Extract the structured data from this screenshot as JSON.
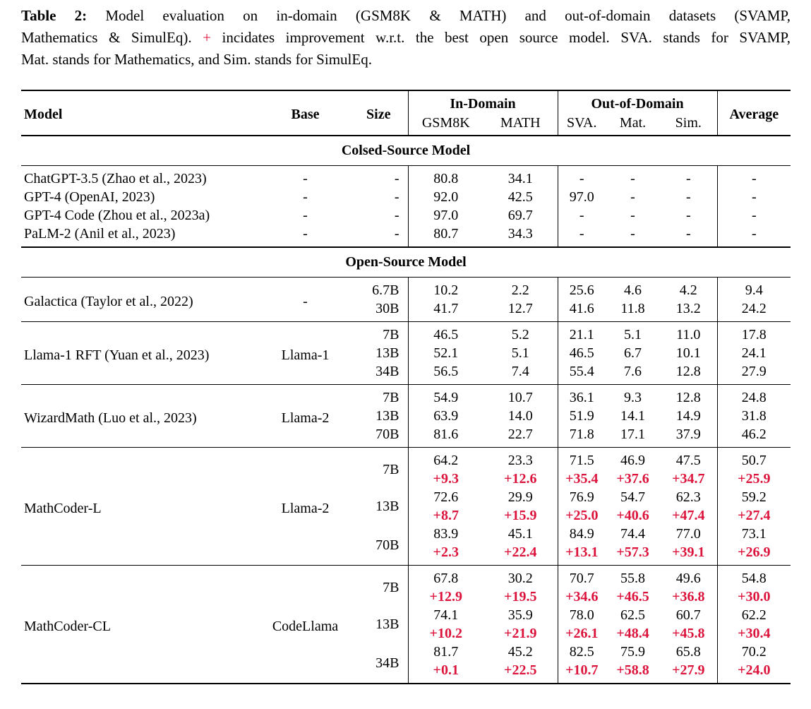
{
  "colors": {
    "accent_red": "#DC143C",
    "text": "#000000",
    "background": "#FFFFFF"
  },
  "caption": {
    "label": "Table 2:",
    "line1_rest": " Model evaluation on in-domain (GSM8K & MATH) and out-of-domain datasets (SVAMP,",
    "line2_before_plus": "Mathematics & SimulEq). ",
    "plus": "+",
    "line2_after_plus": " incidates improvement w.r.t. the best open source model. SVA. stands for SVAMP,",
    "line3": "Mat. stands for Mathematics, and Sim. stands for SimulEq."
  },
  "table": {
    "header": {
      "model": "Model",
      "base": "Base",
      "size": "Size",
      "in_domain": "In-Domain",
      "out_of_domain": "Out-of-Domain",
      "average": "Average",
      "sub_columns": [
        "GSM8K",
        "MATH",
        "SVA.",
        "Mat.",
        "Sim."
      ]
    },
    "sections": [
      {
        "title": "Colsed-Source Model",
        "blocks": [
          {
            "rows": [
              {
                "model": "ChatGPT-3.5 (Zhao et al., 2023)",
                "base": "-",
                "size": "-",
                "values": [
                  "80.8",
                  "34.1",
                  "-",
                  "-",
                  "-",
                  "-"
                ]
              },
              {
                "model": "GPT-4 (OpenAI, 2023)",
                "base": "-",
                "size": "-",
                "values": [
                  "92.0",
                  "42.5",
                  "97.0",
                  "-",
                  "-",
                  "-"
                ]
              },
              {
                "model": "GPT-4 Code (Zhou et al., 2023a)",
                "base": "-",
                "size": "-",
                "values": [
                  "97.0",
                  "69.7",
                  "-",
                  "-",
                  "-",
                  "-"
                ]
              },
              {
                "model": "PaLM-2 (Anil et al., 2023)",
                "base": "-",
                "size": "-",
                "values": [
                  "80.7",
                  "34.3",
                  "-",
                  "-",
                  "-",
                  "-"
                ]
              }
            ]
          }
        ]
      },
      {
        "title": "Open-Source Model",
        "blocks": [
          {
            "model": "Galactica (Taylor et al., 2022)",
            "base": "-",
            "rows": [
              {
                "size": "6.7B",
                "values": [
                  "10.2",
                  "2.2",
                  "25.6",
                  "4.6",
                  "4.2",
                  "9.4"
                ]
              },
              {
                "size": "30B",
                "values": [
                  "41.7",
                  "12.7",
                  "41.6",
                  "11.8",
                  "13.2",
                  "24.2"
                ]
              }
            ]
          },
          {
            "model": "Llama-1 RFT (Yuan et al., 2023)",
            "base": "Llama-1",
            "rows": [
              {
                "size": "7B",
                "values": [
                  "46.5",
                  "5.2",
                  "21.1",
                  "5.1",
                  "11.0",
                  "17.8"
                ]
              },
              {
                "size": "13B",
                "values": [
                  "52.1",
                  "5.1",
                  "46.5",
                  "6.7",
                  "10.1",
                  "24.1"
                ]
              },
              {
                "size": "34B",
                "values": [
                  "56.5",
                  "7.4",
                  "55.4",
                  "7.6",
                  "12.8",
                  "27.9"
                ]
              }
            ]
          },
          {
            "model": "WizardMath (Luo et al., 2023)",
            "base": "Llama-2",
            "rows": [
              {
                "size": "7B",
                "values": [
                  "54.9",
                  "10.7",
                  "36.1",
                  "9.3",
                  "12.8",
                  "24.8"
                ]
              },
              {
                "size": "13B",
                "values": [
                  "63.9",
                  "14.0",
                  "51.9",
                  "14.1",
                  "14.9",
                  "31.8"
                ]
              },
              {
                "size": "70B",
                "values": [
                  "81.6",
                  "22.7",
                  "71.8",
                  "17.1",
                  "37.9",
                  "46.2"
                ]
              }
            ]
          },
          {
            "model": "MathCoder-L",
            "base": "Llama-2",
            "rows": [
              {
                "size": "7B",
                "values": [
                  "64.2",
                  "23.3",
                  "71.5",
                  "46.9",
                  "47.5",
                  "50.7"
                ],
                "deltas": [
                  "+9.3",
                  "+12.6",
                  "+35.4",
                  "+37.6",
                  "+34.7",
                  "+25.9"
                ]
              },
              {
                "size": "13B",
                "values": [
                  "72.6",
                  "29.9",
                  "76.9",
                  "54.7",
                  "62.3",
                  "59.2"
                ],
                "deltas": [
                  "+8.7",
                  "+15.9",
                  "+25.0",
                  "+40.6",
                  "+47.4",
                  "+27.4"
                ]
              },
              {
                "size": "70B",
                "values": [
                  "83.9",
                  "45.1",
                  "84.9",
                  "74.4",
                  "77.0",
                  "73.1"
                ],
                "deltas": [
                  "+2.3",
                  "+22.4",
                  "+13.1",
                  "+57.3",
                  "+39.1",
                  "+26.9"
                ]
              }
            ]
          },
          {
            "model": "MathCoder-CL",
            "base": "CodeLlama",
            "rows": [
              {
                "size": "7B",
                "values": [
                  "67.8",
                  "30.2",
                  "70.7",
                  "55.8",
                  "49.6",
                  "54.8"
                ],
                "deltas": [
                  "+12.9",
                  "+19.5",
                  "+34.6",
                  "+46.5",
                  "+36.8",
                  "+30.0"
                ]
              },
              {
                "size": "13B",
                "values": [
                  "74.1",
                  "35.9",
                  "78.0",
                  "62.5",
                  "60.7",
                  "62.2"
                ],
                "deltas": [
                  "+10.2",
                  "+21.9",
                  "+26.1",
                  "+48.4",
                  "+45.8",
                  "+30.4"
                ]
              },
              {
                "size": "34B",
                "values": [
                  "81.7",
                  "45.2",
                  "82.5",
                  "75.9",
                  "65.8",
                  "70.2"
                ],
                "deltas": [
                  "+0.1",
                  "+22.5",
                  "+10.7",
                  "+58.8",
                  "+27.9",
                  "+24.0"
                ]
              }
            ]
          }
        ]
      }
    ]
  }
}
